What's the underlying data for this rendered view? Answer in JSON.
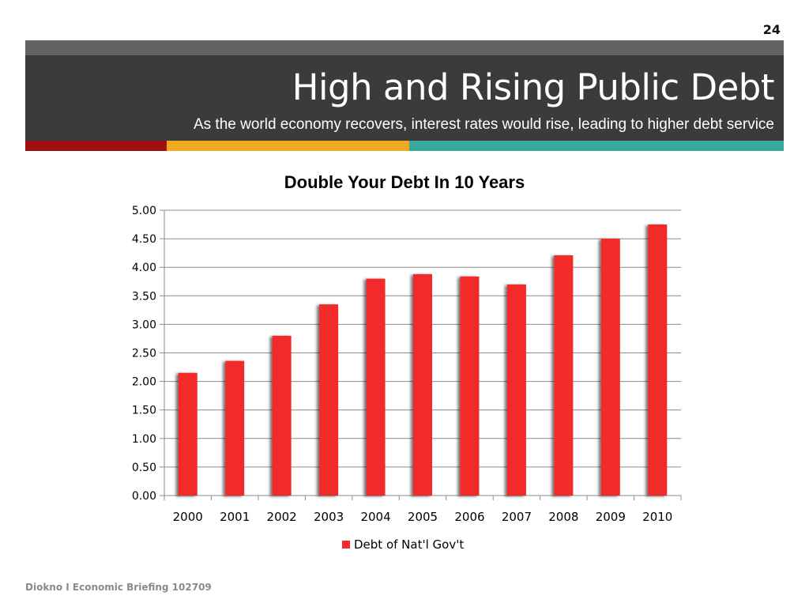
{
  "slide": {
    "number": "24",
    "title": "High and Rising Public Debt",
    "subtitle": "As the world economy recovers, interest rates would rise, leading to higher debt service",
    "footer": "Diokno I Economic Briefing 102709"
  },
  "colors": {
    "top_bar": "#636363",
    "title_band": "#3b3b3b",
    "accent_red": "#a01010",
    "accent_yellow": "#efaa1f",
    "accent_teal": "#3aa89d",
    "bar": "#f22b2b"
  },
  "chart_data": {
    "type": "bar",
    "title": "Double Your Debt In 10 Years",
    "categories": [
      "2000",
      "2001",
      "2002",
      "2003",
      "2004",
      "2005",
      "2006",
      "2007",
      "2008",
      "2009",
      "2010"
    ],
    "series": [
      {
        "name": "Debt of Nat'l Gov't",
        "values": [
          2.15,
          2.36,
          2.8,
          3.35,
          3.8,
          3.88,
          3.84,
          3.7,
          4.21,
          4.5,
          4.75
        ]
      }
    ],
    "ylim": [
      0,
      5
    ],
    "yticks": [
      "0.00",
      "0.50",
      "1.00",
      "1.50",
      "2.00",
      "2.50",
      "3.00",
      "3.50",
      "4.00",
      "4.50",
      "5.00"
    ],
    "grid": true,
    "legend_position": "bottom"
  }
}
